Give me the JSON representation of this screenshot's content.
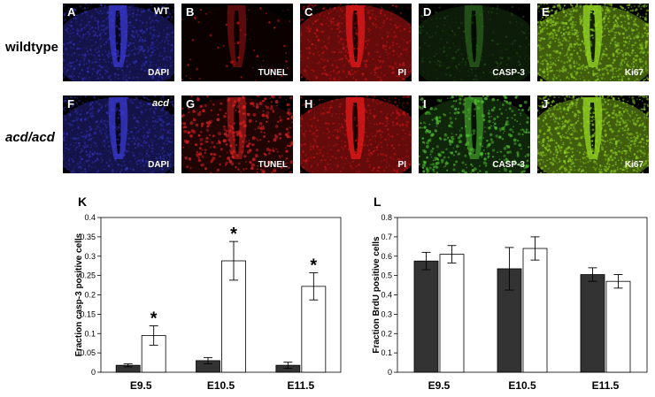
{
  "rows": [
    {
      "label": "wildtype",
      "panels": [
        {
          "letter": "A",
          "top_label": "WT",
          "bottom_label": "DAPI",
          "stain": "dapi"
        },
        {
          "letter": "B",
          "top_label": "",
          "bottom_label": "TUNEL",
          "stain": "tunel_sparse"
        },
        {
          "letter": "C",
          "top_label": "",
          "bottom_label": "PI",
          "stain": "pi"
        },
        {
          "letter": "D",
          "top_label": "",
          "bottom_label": "CASP-3",
          "stain": "casp_dim"
        },
        {
          "letter": "E",
          "top_label": "",
          "bottom_label": "Ki67",
          "stain": "ki67"
        }
      ]
    },
    {
      "label": "acd/acd",
      "panels": [
        {
          "letter": "F",
          "top_label": "acd",
          "bottom_label": "DAPI",
          "stain": "dapi"
        },
        {
          "letter": "G",
          "top_label": "",
          "bottom_label": "TUNEL",
          "stain": "tunel_dense"
        },
        {
          "letter": "H",
          "top_label": "",
          "bottom_label": "PI",
          "stain": "pi"
        },
        {
          "letter": "I",
          "top_label": "",
          "bottom_label": "CASP-3",
          "stain": "casp_bright"
        },
        {
          "letter": "J",
          "top_label": "",
          "bottom_label": "Ki67",
          "stain": "ki67"
        }
      ]
    }
  ],
  "stain_colors": {
    "dapi": "#3a3ad8",
    "tunel_sparse": "#d01818",
    "tunel_dense": "#e02020",
    "pi": "#e01818",
    "casp_dim": "#2f6f1f",
    "casp_bright": "#4fc030",
    "ki67": "#8fd020"
  },
  "chart_data": [
    {
      "panel_letter": "K",
      "type": "bar",
      "ylabel": "Fraction casp-3 positive cells",
      "categories": [
        "E9.5",
        "E10.5",
        "E11.5"
      ],
      "series": [
        {
          "color": "#333333",
          "values": [
            0.018,
            0.03,
            0.018
          ],
          "errors": [
            0.004,
            0.008,
            0.008
          ]
        },
        {
          "color": "#ffffff",
          "values": [
            0.095,
            0.288,
            0.222
          ],
          "errors": [
            0.025,
            0.05,
            0.035
          ]
        }
      ],
      "significance": [
        "*",
        "*",
        "*"
      ],
      "ylim": [
        0,
        0.4
      ],
      "yticks": [
        "0",
        "0.05",
        "0.1",
        "0.15",
        "0.2",
        "0.25",
        "0.3",
        "0.35",
        "0.4"
      ]
    },
    {
      "panel_letter": "L",
      "type": "bar",
      "ylabel": "Fraction BrdU positive cells",
      "categories": [
        "E9.5",
        "E10.5",
        "E11.5"
      ],
      "series": [
        {
          "color": "#333333",
          "values": [
            0.575,
            0.535,
            0.505
          ],
          "errors": [
            0.045,
            0.11,
            0.035
          ]
        },
        {
          "color": "#ffffff",
          "values": [
            0.61,
            0.64,
            0.47
          ],
          "errors": [
            0.045,
            0.06,
            0.035
          ]
        }
      ],
      "ylim": [
        0,
        0.8
      ],
      "yticks": [
        "0",
        "0.1",
        "0.2",
        "0.3",
        "0.4",
        "0.5",
        "0.6",
        "0.7",
        "0.8"
      ]
    }
  ]
}
